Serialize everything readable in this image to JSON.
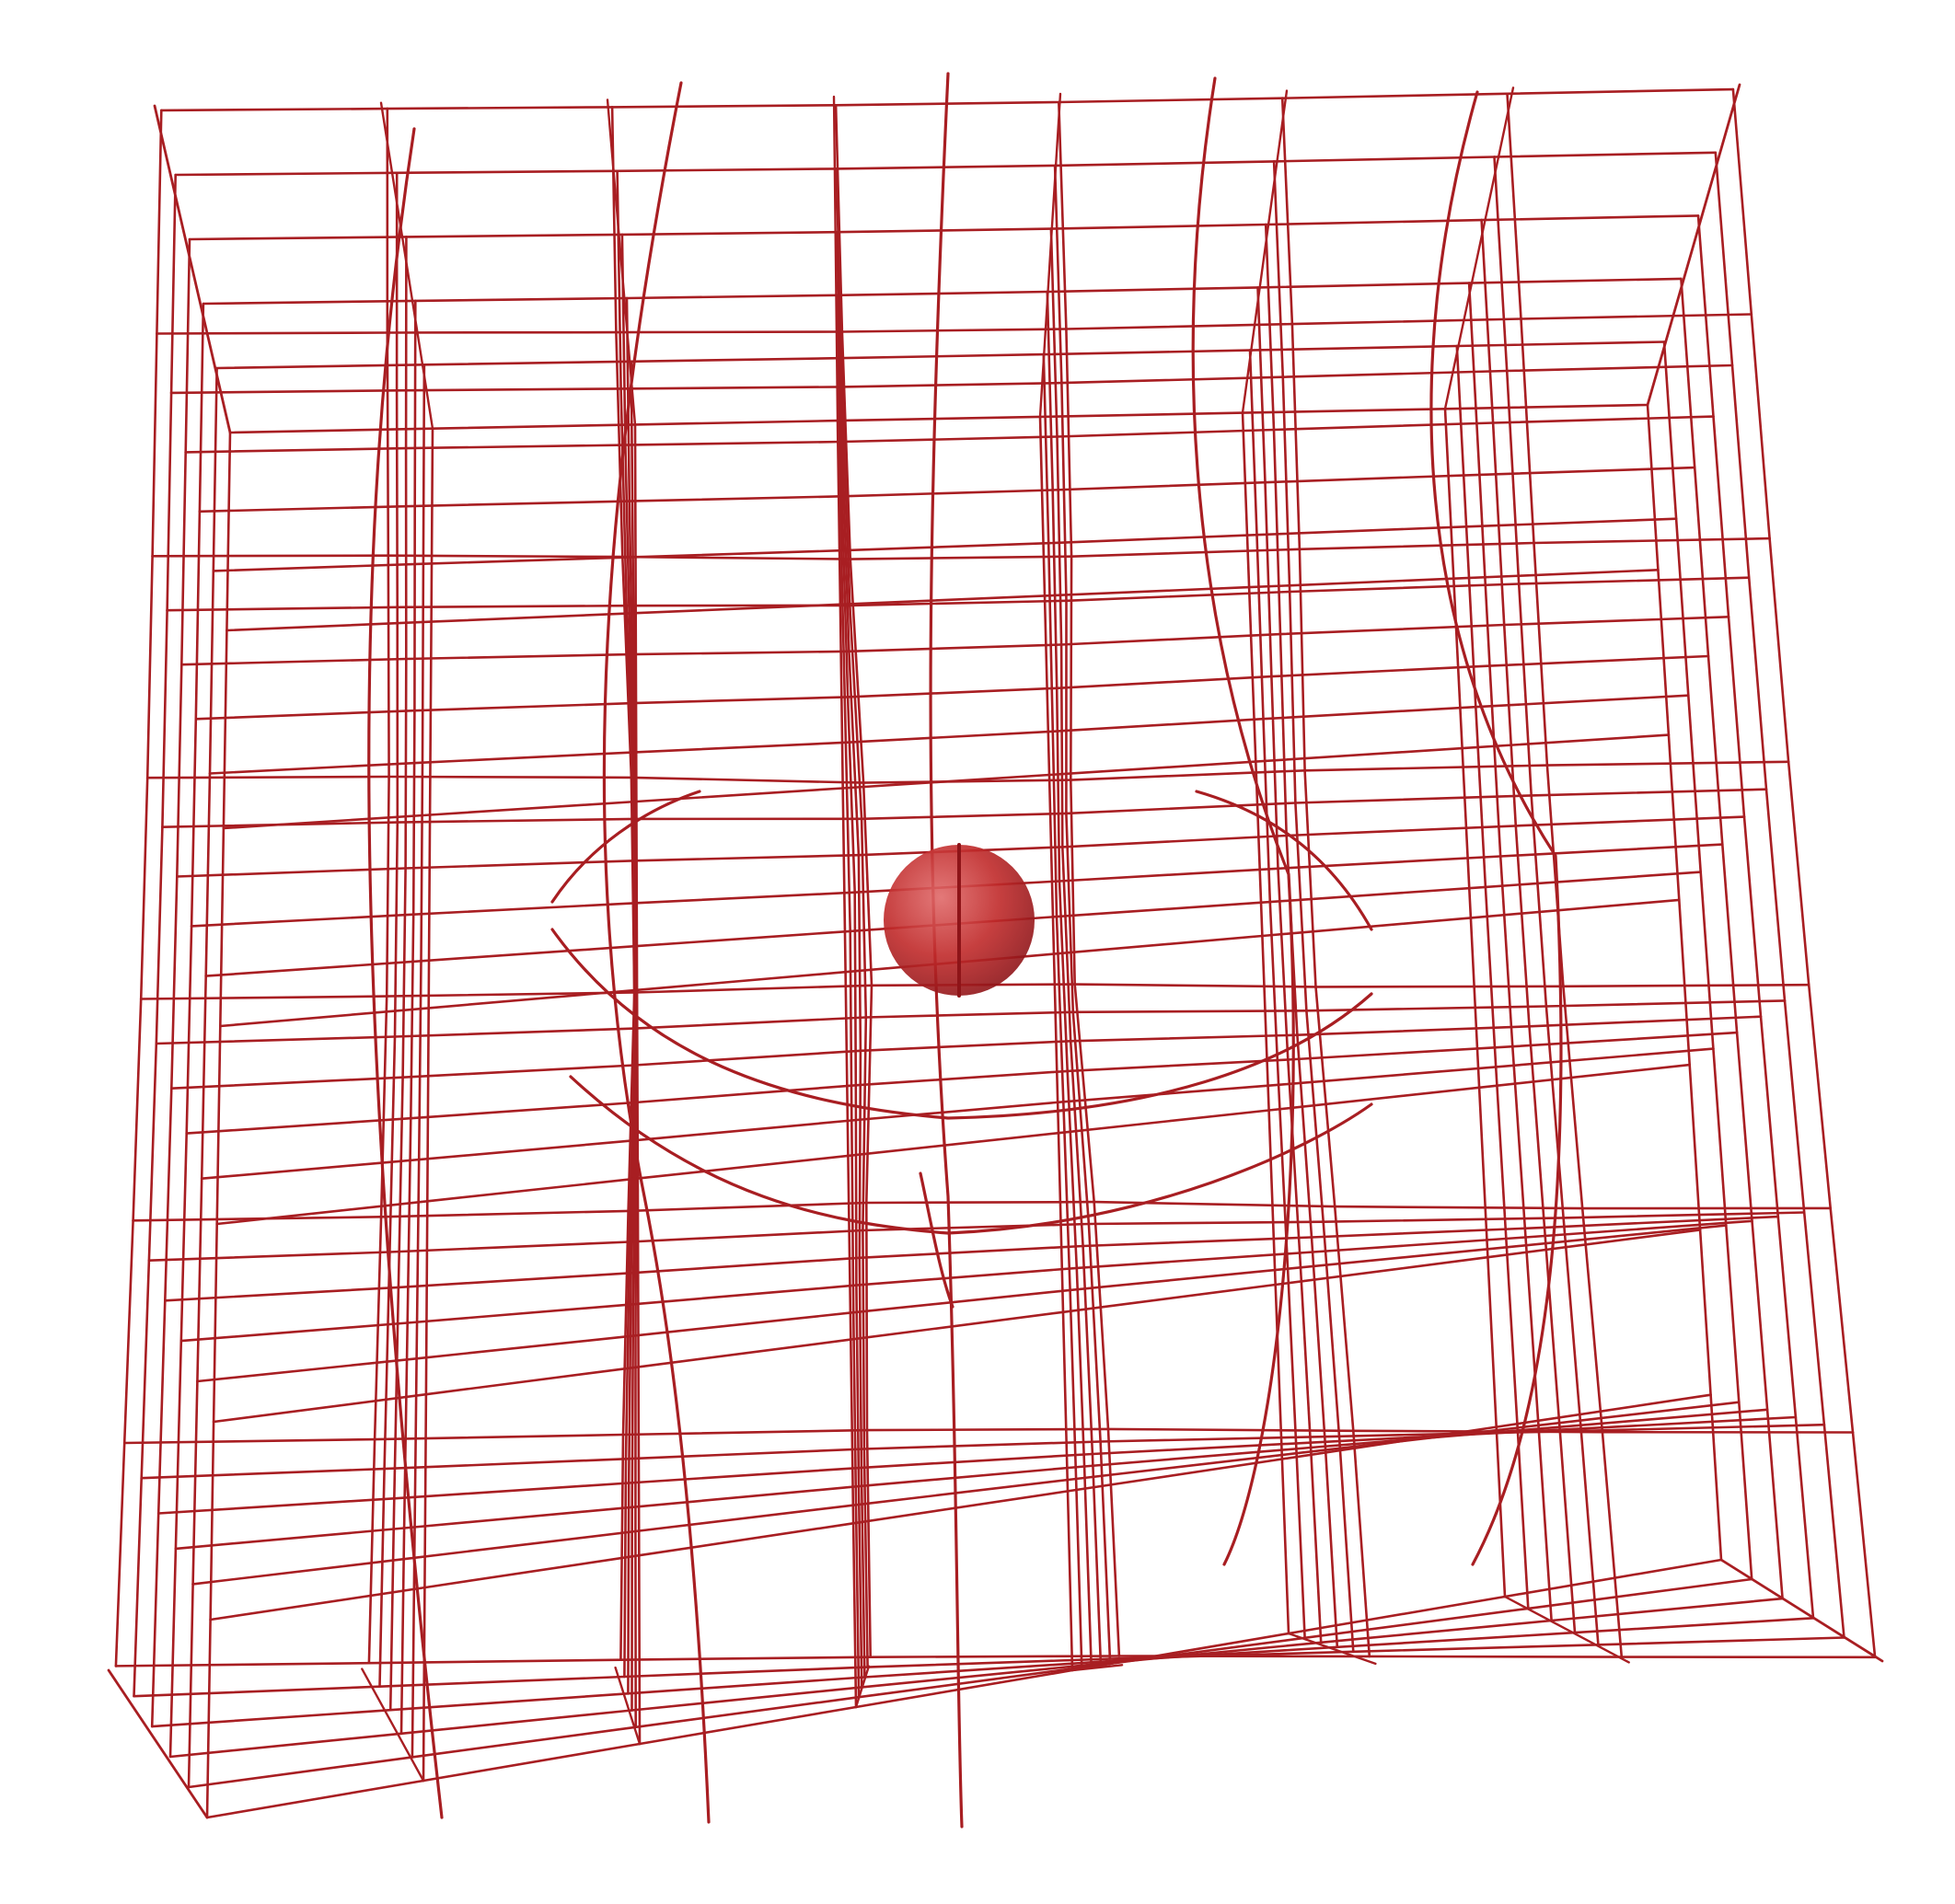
{
  "scene": {
    "subject": "wireframe-lattice",
    "colors": {
      "wire": "#a81e22",
      "sphere_light": "#e06a6a",
      "sphere_mid": "#c02a2a",
      "sphere_dark": "#8e1418",
      "background": "#ffffff"
    },
    "lattice": {
      "columns": 7,
      "rows": 7,
      "layers": 6
    },
    "sphere": {
      "count": 1,
      "icon": "sphere-icon"
    }
  }
}
